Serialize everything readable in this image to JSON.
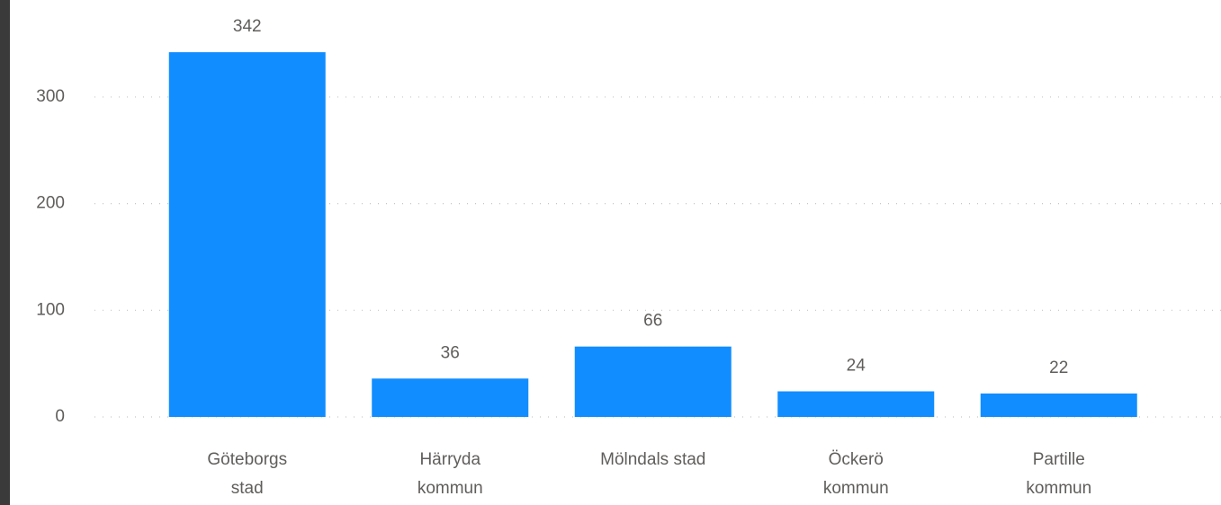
{
  "chart_data": {
    "type": "bar",
    "categories": [
      "Göteborgs stad",
      "Härryda kommun",
      "Mölndals stad",
      "Öckerö kommun",
      "Partille kommun"
    ],
    "values": [
      342,
      36,
      66,
      24,
      22
    ],
    "color": "#118dff",
    "ylim": [
      0,
      380
    ],
    "yticks": [
      0,
      100,
      200,
      300
    ],
    "grid": true
  }
}
